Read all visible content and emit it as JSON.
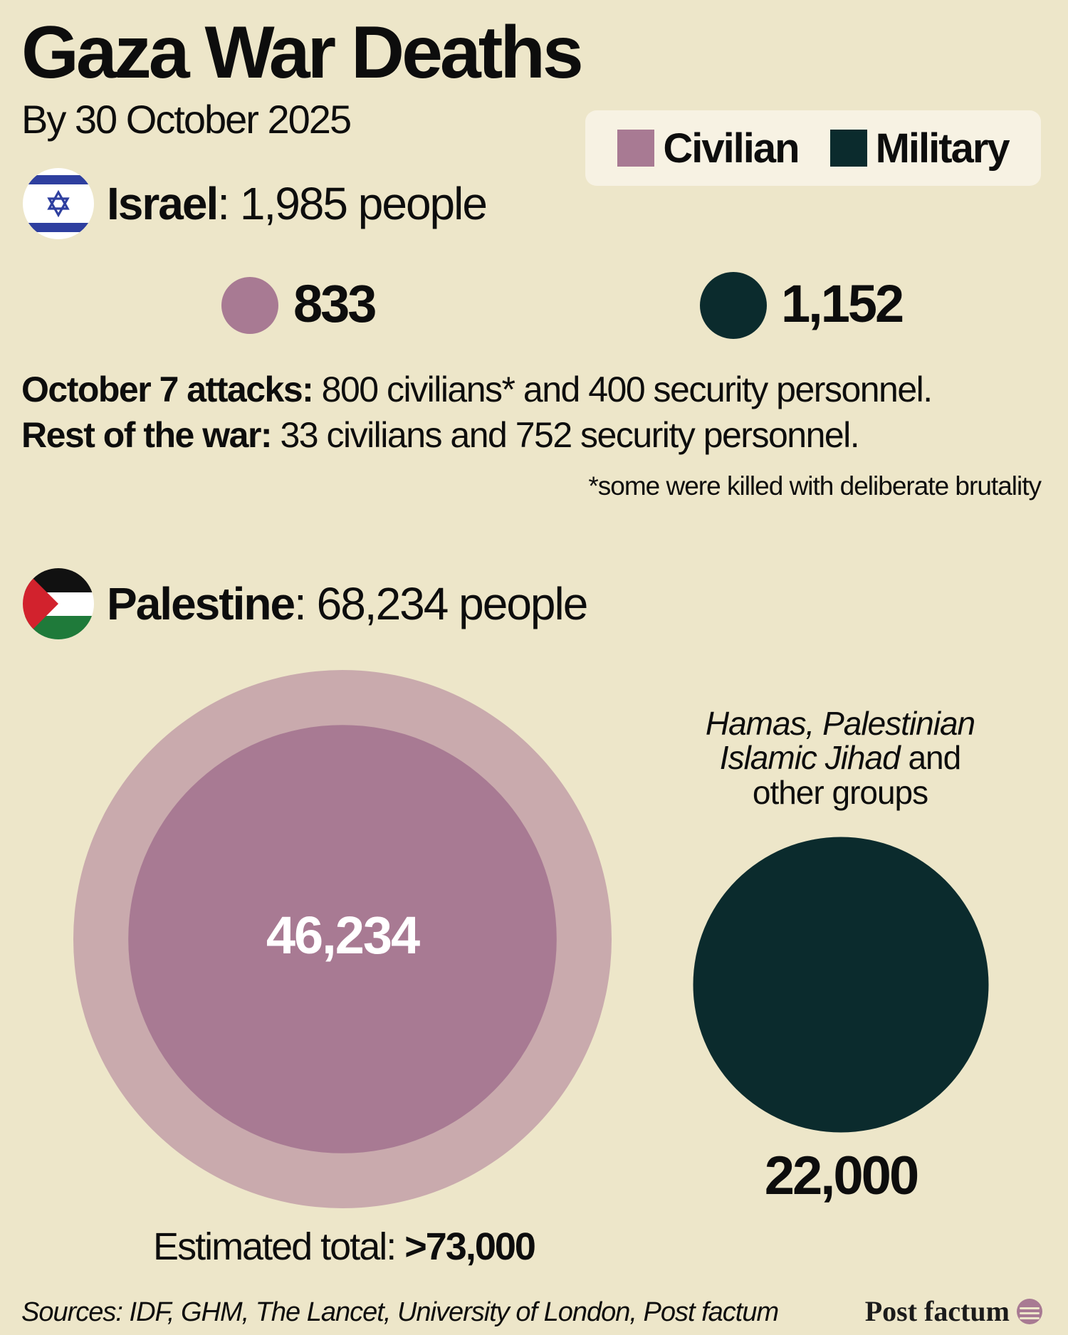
{
  "title": "Gaza War Deaths",
  "subtitle": "By 30 October 2025",
  "legend": [
    {
      "label": "Civilian",
      "color": "#a87a93"
    },
    {
      "label": "Military",
      "color": "#0b2b2d"
    }
  ],
  "israel": {
    "name": "Israel",
    "total_text": ": 1,985 people",
    "flag_icon": "israel-flag-icon",
    "breakdown_lines": [
      {
        "label": "October 7 attacks:",
        "text": " 800 civilians* and 400 security personnel."
      },
      {
        "label": "Rest of the war:",
        "text": " 33 civilians and 752 security personnel."
      }
    ],
    "footnote": "*some were killed with deliberate brutality"
  },
  "palestine": {
    "name": "Palestine",
    "total_text": ": 68,234 people",
    "flag_icon": "palestine-flag-icon",
    "military_groups": {
      "italic_1": "Hamas, Palestinian",
      "italic_2": "Islamic Jihad",
      "text_2": " and",
      "text_3": "other groups"
    },
    "estimated_total_label": "Estimated total: ",
    "estimated_total_value": ">73,000"
  },
  "chart_data": [
    {
      "type": "bubble",
      "title": "Israel",
      "series": [
        {
          "name": "Civilian",
          "value": 833,
          "label": "833",
          "color": "#a87a93"
        },
        {
          "name": "Military",
          "value": 1152,
          "label": "1,152",
          "color": "#0b2b2d"
        }
      ]
    },
    {
      "type": "bubble",
      "title": "Palestine",
      "series": [
        {
          "name": "Civilian",
          "value": 46234,
          "label": "46,234",
          "color": "#a87a93"
        },
        {
          "name": "Military",
          "value": 22000,
          "label": "22,000",
          "color": "#0b2b2d"
        },
        {
          "name": "Estimated total",
          "value": 73000,
          "label": ">73,000",
          "color": "#c9aaad"
        }
      ]
    }
  ],
  "footer": {
    "sources": "Sources: IDF, GHM, The Lancet, University of London, Post factum",
    "brand": "Post factum"
  }
}
